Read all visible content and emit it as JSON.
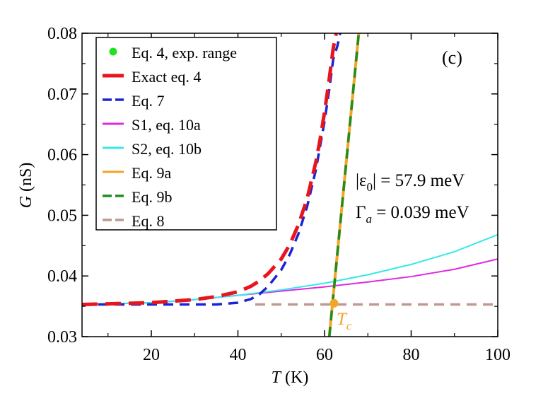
{
  "chart_data": {
    "type": "line",
    "panel_label": "(c)",
    "xlabel_italic": "T",
    "xlabel_unit": " (K)",
    "ylabel_italic": "G",
    "ylabel_unit": " (nS)",
    "xlim": [
      4,
      100
    ],
    "ylim": [
      0.03,
      0.08
    ],
    "x_ticks": [
      20,
      40,
      60,
      80,
      100
    ],
    "x_tick_labels": [
      "20",
      "40",
      "60",
      "80",
      "100"
    ],
    "y_ticks": [
      0.03,
      0.04,
      0.05,
      0.06,
      0.07,
      0.08
    ],
    "y_tick_labels": [
      "0.03",
      "0.04",
      "0.05",
      "0.06",
      "0.07",
      "0.08"
    ],
    "grid": false,
    "legend_position": "top-left",
    "annotations": {
      "eps_prefix": "|ε",
      "eps_sub": "0",
      "eps_suffix": "| = 57.9 meV",
      "gamma_prefix": "Γ",
      "gamma_sub": "a",
      "gamma_suffix": " = 0.039 meV",
      "tc_main": "T",
      "tc_sub": "c",
      "tc_point": {
        "x": 62.2,
        "y": 0.0355
      }
    },
    "series": [
      {
        "name": "Eq. 4, exp. range",
        "color": "#22e022",
        "style": "marker",
        "x": [],
        "y": []
      },
      {
        "name": "Exact eq. 4",
        "color": "#e8141e",
        "style": "longdash",
        "x": [
          4,
          10,
          20,
          30,
          35,
          40,
          43,
          45,
          47,
          50,
          52,
          54,
          56,
          58,
          59,
          60,
          61,
          62,
          62.7
        ],
        "y": [
          0.0353,
          0.0354,
          0.0356,
          0.0361,
          0.0366,
          0.0374,
          0.0383,
          0.0392,
          0.0404,
          0.0428,
          0.0452,
          0.0485,
          0.0528,
          0.0588,
          0.0626,
          0.067,
          0.072,
          0.0775,
          0.08
        ]
      },
      {
        "name": "Eq. 7",
        "color": "#1c24d2",
        "style": "dash",
        "x": [
          4,
          20,
          35,
          40,
          43,
          45,
          47,
          50,
          52,
          54,
          56,
          58,
          60,
          61,
          62,
          63,
          63.6
        ],
        "y": [
          0.0353,
          0.0353,
          0.0353,
          0.0356,
          0.0362,
          0.037,
          0.0383,
          0.041,
          0.0436,
          0.047,
          0.0515,
          0.0575,
          0.0655,
          0.0703,
          0.0757,
          0.078,
          0.08
        ]
      },
      {
        "name": "S1, eq. 10a",
        "color": "#e028e0",
        "style": "solid",
        "x": [
          4,
          20,
          30,
          40,
          50,
          60,
          70,
          80,
          90,
          100
        ],
        "y": [
          0.0353,
          0.0356,
          0.0361,
          0.0368,
          0.0375,
          0.0382,
          0.039,
          0.0399,
          0.0411,
          0.0428
        ]
      },
      {
        "name": "S2, eq. 10b",
        "color": "#34e8e8",
        "style": "solid",
        "x": [
          4,
          20,
          30,
          40,
          50,
          60,
          70,
          80,
          90,
          100
        ],
        "y": [
          0.0353,
          0.0356,
          0.0361,
          0.0368,
          0.0377,
          0.0388,
          0.0402,
          0.0419,
          0.044,
          0.0468
        ]
      },
      {
        "name": "Eq. 9a",
        "color": "#f2a526",
        "style": "solid",
        "x": [
          61.1,
          67.9
        ],
        "y": [
          0.03,
          0.08
        ]
      },
      {
        "name": "Eq. 9b",
        "color": "#218c21",
        "style": "dash",
        "x": [
          61.1,
          67.9
        ],
        "y": [
          0.03,
          0.08
        ]
      },
      {
        "name": "Eq. 8",
        "color": "#bc9a92",
        "style": "dash",
        "x": [
          44,
          100
        ],
        "y": [
          0.0353,
          0.0353
        ]
      }
    ]
  }
}
